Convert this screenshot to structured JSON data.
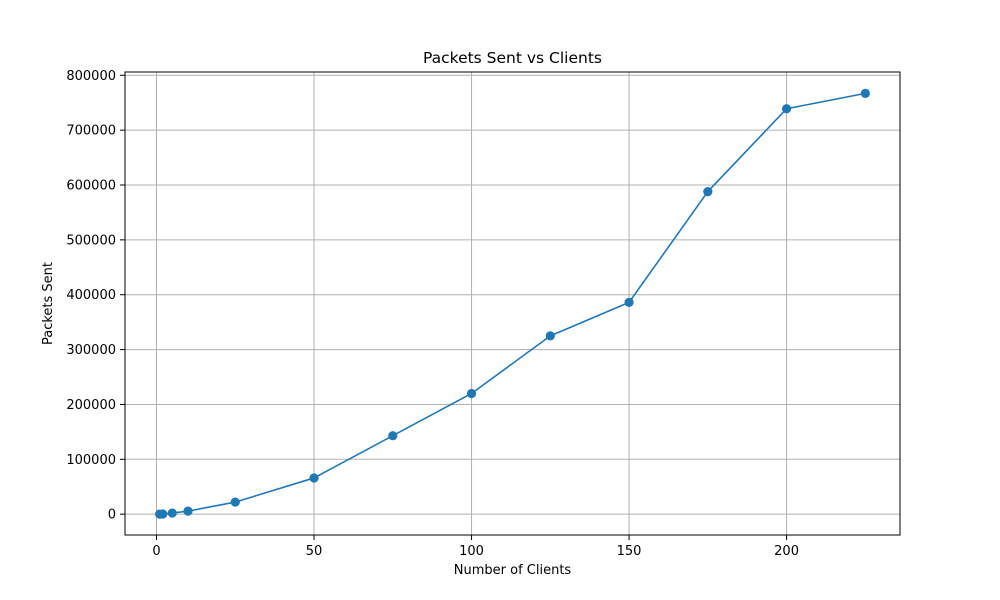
{
  "chart_data": {
    "type": "line",
    "title": "Packets Sent vs Clients",
    "xlabel": "Number of Clients",
    "ylabel": "Packets Sent",
    "xlim": [
      -10,
      236
    ],
    "ylim": [
      -38000,
      806000
    ],
    "x_ticks": [
      0,
      50,
      100,
      150,
      200
    ],
    "y_ticks": [
      0,
      100000,
      200000,
      300000,
      400000,
      500000,
      600000,
      700000,
      800000
    ],
    "grid": true,
    "marker": "circle",
    "color": "#1f77b4",
    "series": [
      {
        "x": [
          1,
          2,
          5,
          10,
          25,
          50,
          75,
          100,
          125,
          150,
          175,
          200,
          225
        ],
        "values": [
          100,
          300,
          2000,
          5500,
          22000,
          66000,
          143000,
          220000,
          325000,
          386000,
          588000,
          739000,
          767000
        ]
      }
    ]
  }
}
